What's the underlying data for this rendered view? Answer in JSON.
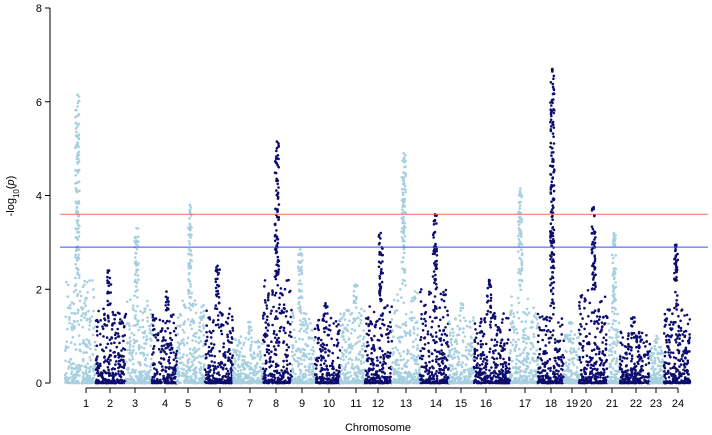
{
  "chart_data": {
    "type": "scatter",
    "subtype": "manhattan",
    "title": "",
    "xlabel": "Chromosome",
    "ylabel": "-log10(p)",
    "ylim": [
      0,
      8
    ],
    "y_ticks": [
      0,
      2,
      4,
      6,
      8
    ],
    "chromosomes": [
      "1",
      "2",
      "3",
      "4",
      "5",
      "6",
      "7",
      "8",
      "9",
      "10",
      "11",
      "12",
      "13",
      "14",
      "15",
      "16",
      "17",
      "18",
      "19",
      "20",
      "21",
      "22",
      "23",
      "24"
    ],
    "colors": {
      "odd": "#a6cfe0",
      "even": "#0d0d6e",
      "suggestive_line": "#3a4ef5",
      "significance_line": "#f26a5a"
    },
    "thresholds": {
      "significance": 3.6,
      "suggestive": 2.9
    },
    "series": [
      {
        "chromosome": "1",
        "max_y": 6.15,
        "bulk_max": 2.2
      },
      {
        "chromosome": "2",
        "max_y": 2.4,
        "bulk_max": 1.6
      },
      {
        "chromosome": "3",
        "max_y": 3.3,
        "bulk_max": 1.8
      },
      {
        "chromosome": "4",
        "max_y": 1.95,
        "bulk_max": 1.5
      },
      {
        "chromosome": "5",
        "max_y": 3.8,
        "bulk_max": 1.8
      },
      {
        "chromosome": "6",
        "max_y": 2.5,
        "bulk_max": 1.6
      },
      {
        "chromosome": "7",
        "max_y": 1.3,
        "bulk_max": 1.0
      },
      {
        "chromosome": "8",
        "max_y": 5.15,
        "bulk_max": 2.2
      },
      {
        "chromosome": "9",
        "max_y": 2.85,
        "bulk_max": 1.5
      },
      {
        "chromosome": "10",
        "max_y": 1.7,
        "bulk_max": 1.4
      },
      {
        "chromosome": "11",
        "max_y": 2.1,
        "bulk_max": 1.6
      },
      {
        "chromosome": "12",
        "max_y": 3.2,
        "bulk_max": 1.7
      },
      {
        "chromosome": "13",
        "max_y": 4.9,
        "bulk_max": 2.0
      },
      {
        "chromosome": "14",
        "max_y": 3.6,
        "bulk_max": 2.0
      },
      {
        "chromosome": "15",
        "max_y": 1.7,
        "bulk_max": 1.4
      },
      {
        "chromosome": "16",
        "max_y": 2.2,
        "bulk_max": 1.5
      },
      {
        "chromosome": "17",
        "max_y": 4.15,
        "bulk_max": 1.9
      },
      {
        "chromosome": "18",
        "max_y": 6.7,
        "bulk_max": 1.5
      },
      {
        "chromosome": "19",
        "max_y": 1.3,
        "bulk_max": 1.1
      },
      {
        "chromosome": "20",
        "max_y": 3.75,
        "bulk_max": 2.0
      },
      {
        "chromosome": "21",
        "max_y": 3.2,
        "bulk_max": 1.5
      },
      {
        "chromosome": "22",
        "max_y": 1.4,
        "bulk_max": 1.1
      },
      {
        "chromosome": "23",
        "max_y": 1.0,
        "bulk_max": 0.8
      },
      {
        "chromosome": "24",
        "max_y": 2.95,
        "bulk_max": 1.6
      }
    ]
  }
}
